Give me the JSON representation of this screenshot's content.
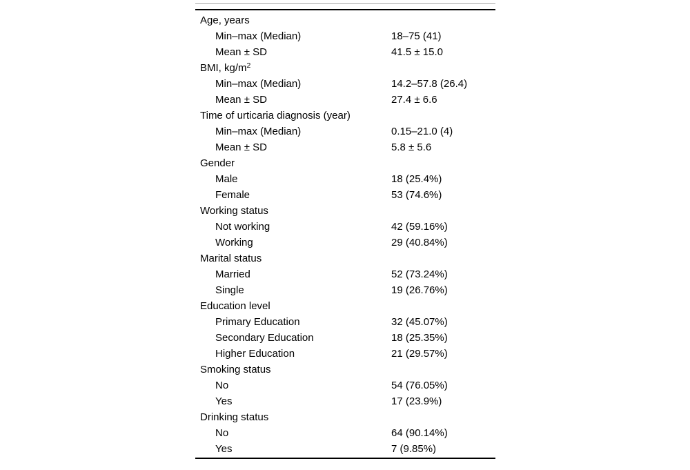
{
  "colors": {
    "background": "#ffffff",
    "text": "#000000",
    "thick_rule": "#000000",
    "hairline": "#a8a8a8"
  },
  "table": {
    "rows": [
      {
        "label": "Age, years",
        "sup": "",
        "value": "",
        "indent": 0
      },
      {
        "label": "Min–max (Median)",
        "sup": "",
        "value": "18–75 (41)",
        "indent": 1
      },
      {
        "label": "Mean ± SD",
        "sup": "",
        "value": "41.5 ± 15.0",
        "indent": 1
      },
      {
        "label": "BMI, kg/m",
        "sup": "2",
        "value": "",
        "indent": 0
      },
      {
        "label": "Min–max (Median)",
        "sup": "",
        "value": "14.2–57.8 (26.4)",
        "indent": 1
      },
      {
        "label": "Mean ± SD",
        "sup": "",
        "value": "27.4 ± 6.6",
        "indent": 1
      },
      {
        "label": "Time of urticaria diagnosis (year)",
        "sup": "",
        "value": "",
        "indent": 0
      },
      {
        "label": "Min–max (Median)",
        "sup": "",
        "value": "0.15–21.0 (4)",
        "indent": 1
      },
      {
        "label": "Mean ± SD",
        "sup": "",
        "value": "5.8 ± 5.6",
        "indent": 1
      },
      {
        "label": "Gender",
        "sup": "",
        "value": "",
        "indent": 0
      },
      {
        "label": "Male",
        "sup": "",
        "value": "18 (25.4%)",
        "indent": 1
      },
      {
        "label": "Female",
        "sup": "",
        "value": "53 (74.6%)",
        "indent": 1
      },
      {
        "label": "Working status",
        "sup": "",
        "value": "",
        "indent": 0
      },
      {
        "label": "Not working",
        "sup": "",
        "value": "42 (59.16%)",
        "indent": 1
      },
      {
        "label": "Working",
        "sup": "",
        "value": "29 (40.84%)",
        "indent": 1
      },
      {
        "label": "Marital status",
        "sup": "",
        "value": "",
        "indent": 0
      },
      {
        "label": "Married",
        "sup": "",
        "value": "52 (73.24%)",
        "indent": 1
      },
      {
        "label": "Single",
        "sup": "",
        "value": "19 (26.76%)",
        "indent": 1
      },
      {
        "label": "Education level",
        "sup": "",
        "value": "",
        "indent": 0
      },
      {
        "label": "Primary Education",
        "sup": "",
        "value": "32 (45.07%)",
        "indent": 1
      },
      {
        "label": "Secondary Education",
        "sup": "",
        "value": "18 (25.35%)",
        "indent": 1
      },
      {
        "label": "Higher Education",
        "sup": "",
        "value": "21 (29.57%)",
        "indent": 1
      },
      {
        "label": "Smoking status",
        "sup": "",
        "value": "",
        "indent": 0
      },
      {
        "label": "No",
        "sup": "",
        "value": "54 (76.05%)",
        "indent": 1
      },
      {
        "label": "Yes",
        "sup": "",
        "value": "17 (23.9%)",
        "indent": 1
      },
      {
        "label": "Drinking status",
        "sup": "",
        "value": "",
        "indent": 0
      },
      {
        "label": "No",
        "sup": "",
        "value": "64 (90.14%)",
        "indent": 1
      },
      {
        "label": "Yes",
        "sup": "",
        "value": "7 (9.85%)",
        "indent": 1
      }
    ]
  }
}
